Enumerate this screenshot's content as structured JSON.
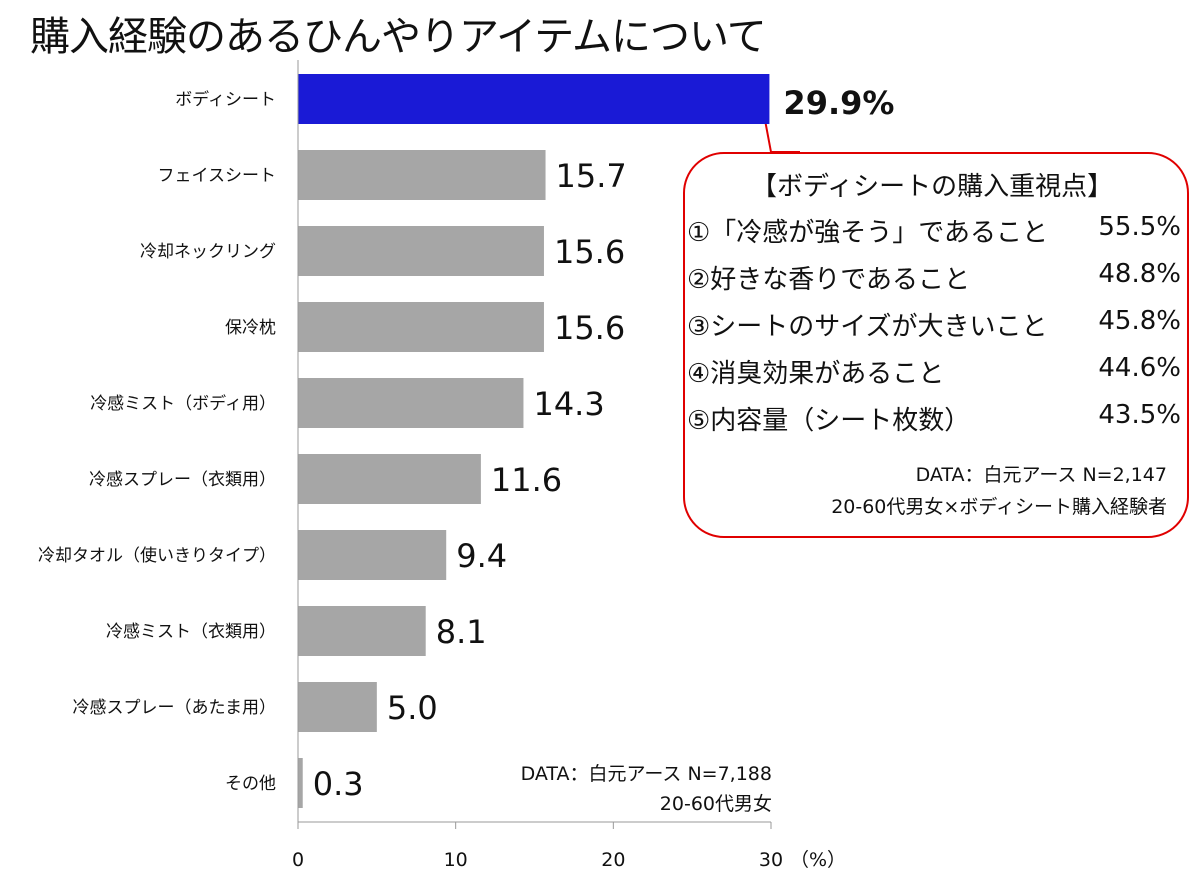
{
  "title": "購入経験のあるひんやりアイテムについて",
  "chart_data": {
    "type": "bar",
    "orientation": "horizontal",
    "categories": [
      "ボディシート",
      "フェイスシート",
      "冷却ネックリング",
      "保冷枕",
      "冷感ミスト（ボディ用）",
      "冷感スプレー（衣類用）",
      "冷却タオル（使いきりタイプ）",
      "冷感ミスト（衣類用）",
      "冷感スプレー（あたま用）",
      "その他"
    ],
    "values": [
      29.9,
      15.7,
      15.6,
      15.6,
      14.3,
      11.6,
      9.4,
      8.1,
      5.0,
      0.3
    ],
    "value_labels": [
      "29.9%",
      "15.7",
      "15.6",
      "15.6",
      "14.3",
      "11.6",
      "9.4",
      "8.1",
      "5.0",
      "0.3"
    ],
    "xlim": [
      0,
      30
    ],
    "xticks": [
      "0",
      "10",
      "20",
      "30"
    ],
    "xunit": "（%）",
    "grid": false,
    "colors": {
      "highlight": "#1a1ad6",
      "default": "#a6a6a6",
      "highlight_label": "#1a1ad6"
    },
    "source": [
      "DATA：白元アース N=7,188",
      "20-60代男女"
    ]
  },
  "callout": {
    "heading": "【ボディシートの購入重視点】",
    "items": [
      {
        "label": "①「冷感が強そう」であること",
        "value": "55.5%"
      },
      {
        "label": "②好きな香りであること",
        "value": "48.8%"
      },
      {
        "label": "③シートのサイズが大きいこと",
        "value": "45.8%"
      },
      {
        "label": "④消臭効果があること",
        "value": "44.6%"
      },
      {
        "label": "⑤内容量（シート枚数）",
        "value": "43.5%"
      }
    ],
    "source": [
      "DATA：白元アース N=2,147",
      "20-60代男女×ボディシート購入経験者"
    ],
    "border_color": "#e00000"
  }
}
